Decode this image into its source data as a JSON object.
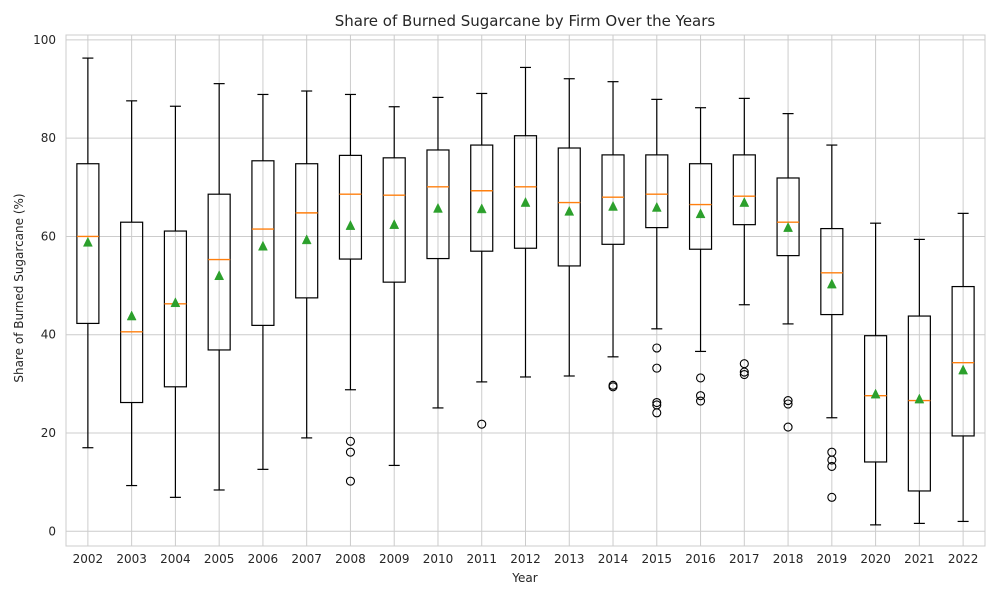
{
  "chart_data": {
    "type": "boxplot",
    "title": "Share of Burned Sugarcane by Firm Over the Years",
    "xlabel": "Year",
    "ylabel": "Share of Burned Sugarcane (%)",
    "ylim": [
      -3,
      101
    ],
    "yticks": [
      0,
      20,
      40,
      60,
      80,
      100
    ],
    "grid": true,
    "colors": {
      "box": "#000000",
      "median": "#ff7f0e",
      "mean": "#2ca02c",
      "grid": "#cccccc",
      "frame": "#cccccc"
    },
    "categories": [
      "2002",
      "2003",
      "2004",
      "2005",
      "2006",
      "2007",
      "2008",
      "2009",
      "2010",
      "2011",
      "2012",
      "2013",
      "2014",
      "2015",
      "2016",
      "2017",
      "2018",
      "2019",
      "2020",
      "2021",
      "2022"
    ],
    "boxes": [
      {
        "whisker_low": 17,
        "q1": 42.3,
        "median": 60,
        "q3": 74.8,
        "whisker_high": 96.3,
        "mean": 58.8,
        "outliers": []
      },
      {
        "whisker_low": 9.3,
        "q1": 26.2,
        "median": 40.6,
        "q3": 62.9,
        "whisker_high": 87.6,
        "mean": 43.8,
        "outliers": []
      },
      {
        "whisker_low": 6.9,
        "q1": 29.4,
        "median": 46.3,
        "q3": 61.1,
        "whisker_high": 86.5,
        "mean": 46.5,
        "outliers": []
      },
      {
        "whisker_low": 8.4,
        "q1": 36.9,
        "median": 55.3,
        "q3": 68.6,
        "whisker_high": 91.1,
        "mean": 52,
        "outliers": []
      },
      {
        "whisker_low": 12.6,
        "q1": 41.9,
        "median": 61.5,
        "q3": 75.4,
        "whisker_high": 88.9,
        "mean": 58,
        "outliers": []
      },
      {
        "whisker_low": 19,
        "q1": 47.5,
        "median": 64.8,
        "q3": 74.8,
        "whisker_high": 89.6,
        "mean": 59.3,
        "outliers": []
      },
      {
        "whisker_low": 28.8,
        "q1": 55.4,
        "median": 68.6,
        "q3": 76.5,
        "whisker_high": 88.9,
        "mean": 62.2,
        "outliers": [
          18.3,
          16.1,
          10.2
        ]
      },
      {
        "whisker_low": 13.4,
        "q1": 50.7,
        "median": 68.4,
        "q3": 76,
        "whisker_high": 86.4,
        "mean": 62.4,
        "outliers": []
      },
      {
        "whisker_low": 25.1,
        "q1": 55.5,
        "median": 70.1,
        "q3": 77.6,
        "whisker_high": 88.3,
        "mean": 65.7,
        "outliers": []
      },
      {
        "whisker_low": 30.4,
        "q1": 57,
        "median": 69.3,
        "q3": 78.6,
        "whisker_high": 89.1,
        "mean": 65.6,
        "outliers": [
          21.8
        ]
      },
      {
        "whisker_low": 31.4,
        "q1": 57.6,
        "median": 70.1,
        "q3": 80.5,
        "whisker_high": 94.4,
        "mean": 66.9,
        "outliers": []
      },
      {
        "whisker_low": 31.6,
        "q1": 54,
        "median": 66.9,
        "q3": 78,
        "whisker_high": 92.1,
        "mean": 65.1,
        "outliers": []
      },
      {
        "whisker_low": 35.5,
        "q1": 58.4,
        "median": 68,
        "q3": 76.6,
        "whisker_high": 91.5,
        "mean": 66.1,
        "outliers": [
          29.7,
          29.4
        ]
      },
      {
        "whisker_low": 41.2,
        "q1": 61.8,
        "median": 68.6,
        "q3": 76.6,
        "whisker_high": 87.9,
        "mean": 65.9,
        "outliers": [
          37.3,
          33.2,
          26.2,
          25.7,
          24.1
        ]
      },
      {
        "whisker_low": 36.6,
        "q1": 57.4,
        "median": 66.5,
        "q3": 74.8,
        "whisker_high": 86.2,
        "mean": 64.6,
        "outliers": [
          31.2,
          27.6,
          26.5
        ]
      },
      {
        "whisker_low": 46.1,
        "q1": 62.4,
        "median": 68.2,
        "q3": 76.6,
        "whisker_high": 88.1,
        "mean": 66.9,
        "outliers": [
          34.1,
          32.4,
          31.9
        ]
      },
      {
        "whisker_low": 42.2,
        "q1": 56.1,
        "median": 62.9,
        "q3": 71.9,
        "whisker_high": 85,
        "mean": 61.8,
        "outliers": [
          26.6,
          25.9,
          21.2
        ]
      },
      {
        "whisker_low": 23.1,
        "q1": 44.1,
        "median": 52.6,
        "q3": 61.6,
        "whisker_high": 78.6,
        "mean": 50.3,
        "outliers": [
          16.1,
          14.5,
          13.2,
          6.9
        ]
      },
      {
        "whisker_low": 1.3,
        "q1": 14.1,
        "median": 27.6,
        "q3": 39.8,
        "whisker_high": 62.7,
        "mean": 27.9,
        "outliers": []
      },
      {
        "whisker_low": 1.6,
        "q1": 8.2,
        "median": 26.6,
        "q3": 43.8,
        "whisker_high": 59.4,
        "mean": 26.9,
        "outliers": []
      },
      {
        "whisker_low": 2,
        "q1": 19.4,
        "median": 34.3,
        "q3": 49.8,
        "whisker_high": 64.7,
        "mean": 32.8,
        "outliers": []
      }
    ]
  }
}
